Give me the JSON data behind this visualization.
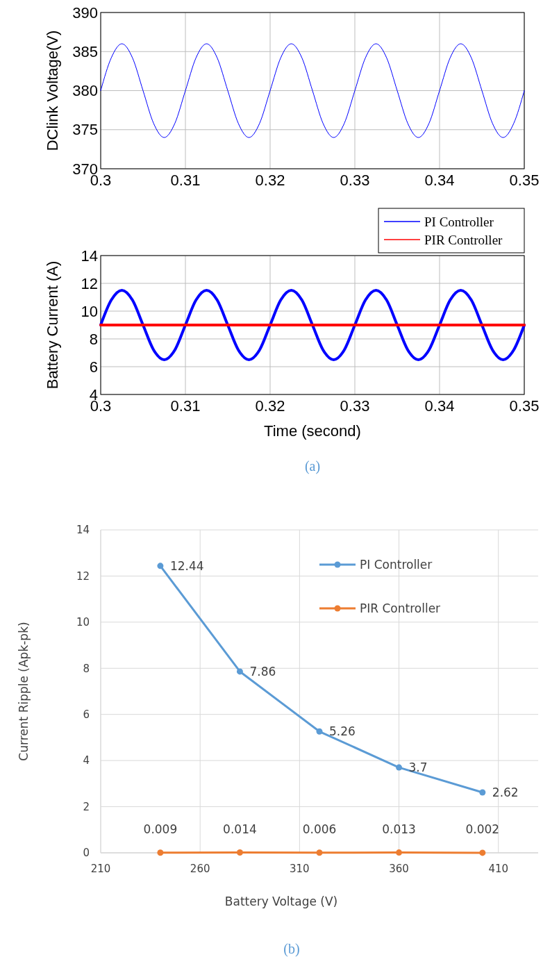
{
  "chart_data": [
    {
      "type": "line",
      "ylabel": "DClink Voltage(V)",
      "xlim": [
        0.3,
        0.35
      ],
      "xticks": [
        0.3,
        0.31,
        0.32,
        0.33,
        0.34,
        0.35
      ],
      "ylim": [
        370,
        390
      ],
      "yticks": [
        370,
        375,
        380,
        385,
        390
      ],
      "grid": true,
      "x": [
        0.3,
        0.30125,
        0.3025,
        0.30375,
        0.305,
        0.30625,
        0.3075,
        0.30875,
        0.31,
        0.31125,
        0.3125,
        0.31375,
        0.315,
        0.31625,
        0.3175,
        0.31875,
        0.32,
        0.32125,
        0.3225,
        0.32375,
        0.325,
        0.32625,
        0.3275,
        0.32875,
        0.33,
        0.33125,
        0.3325,
        0.33375,
        0.335,
        0.33625,
        0.3375,
        0.33875,
        0.34,
        0.34125,
        0.3425,
        0.34375,
        0.345,
        0.34625,
        0.3475,
        0.34875,
        0.35
      ],
      "series": [
        {
          "color": "#0000ff",
          "values": [
            380,
            384.2,
            386,
            384.2,
            380,
            375.8,
            374,
            375.8,
            380,
            384.2,
            386,
            384.2,
            380,
            375.8,
            374,
            375.8,
            380,
            384.2,
            386,
            384.2,
            380,
            375.8,
            374,
            375.8,
            380,
            384.2,
            386,
            384.2,
            380,
            375.8,
            374,
            375.8,
            380,
            384.2,
            386,
            384.2,
            380,
            375.8,
            374,
            375.8,
            380
          ]
        }
      ]
    },
    {
      "type": "line",
      "ylabel": "Battery Current (A)",
      "xlabel": "Time (second)",
      "xlim": [
        0.3,
        0.35
      ],
      "xticks": [
        0.3,
        0.31,
        0.32,
        0.33,
        0.34,
        0.35
      ],
      "ylim": [
        4,
        14
      ],
      "yticks": [
        4,
        6,
        8,
        10,
        12,
        14
      ],
      "grid": true,
      "legend": "top right",
      "annotations": [
        "(a)"
      ],
      "x": [
        0.3,
        0.30125,
        0.3025,
        0.30375,
        0.305,
        0.30625,
        0.3075,
        0.30875,
        0.31,
        0.31125,
        0.3125,
        0.31375,
        0.315,
        0.31625,
        0.3175,
        0.31875,
        0.32,
        0.32125,
        0.3225,
        0.32375,
        0.325,
        0.32625,
        0.3275,
        0.32875,
        0.33,
        0.33125,
        0.3325,
        0.33375,
        0.335,
        0.33625,
        0.3375,
        0.33875,
        0.34,
        0.34125,
        0.3425,
        0.34375,
        0.345,
        0.34625,
        0.3475,
        0.34875,
        0.35
      ],
      "series": [
        {
          "name": "PI Controller",
          "color": "#0000ff",
          "values": [
            9,
            10.8,
            11.5,
            10.8,
            9,
            7.2,
            6.5,
            7.2,
            9,
            10.8,
            11.5,
            10.8,
            9,
            7.2,
            6.5,
            7.2,
            9,
            10.8,
            11.5,
            10.8,
            9,
            7.2,
            6.5,
            7.2,
            9,
            10.8,
            11.5,
            10.8,
            9,
            7.2,
            6.5,
            7.2,
            9,
            10.8,
            11.5,
            10.8,
            9,
            7.2,
            6.5,
            7.2,
            9
          ]
        },
        {
          "name": "PIR Controller",
          "color": "#ff0000",
          "values": [
            9,
            9,
            9,
            9,
            9,
            9,
            9,
            9,
            9,
            9,
            9,
            9,
            9,
            9,
            9,
            9,
            9,
            9,
            9,
            9,
            9,
            9,
            9,
            9,
            9,
            9,
            9,
            9,
            9,
            9,
            9,
            9,
            9,
            9,
            9,
            9,
            9,
            9,
            9,
            9,
            9
          ]
        }
      ]
    },
    {
      "type": "line",
      "ylabel": "Current Ripple (Apk-pk)",
      "xlabel": "Battery Voltage (V)",
      "xlim": [
        210,
        430
      ],
      "xticks": [
        210,
        260,
        310,
        360,
        410
      ],
      "ylim": [
        0,
        14
      ],
      "yticks": [
        0,
        2,
        4,
        6,
        8,
        10,
        12,
        14
      ],
      "grid": true,
      "legend": "top right",
      "marker": "circle",
      "data_labels": true,
      "annotations": [
        "(b)"
      ],
      "x": [
        240,
        280,
        320,
        360,
        402
      ],
      "series": [
        {
          "name": "PI Controller",
          "color": "#5b9bd5",
          "values": [
            12.44,
            7.86,
            5.26,
            3.7,
            2.62
          ]
        },
        {
          "name": "PIR Controller",
          "color": "#ed7d31",
          "values": [
            0.009,
            0.014,
            0.006,
            0.013,
            0.002
          ]
        }
      ]
    }
  ]
}
